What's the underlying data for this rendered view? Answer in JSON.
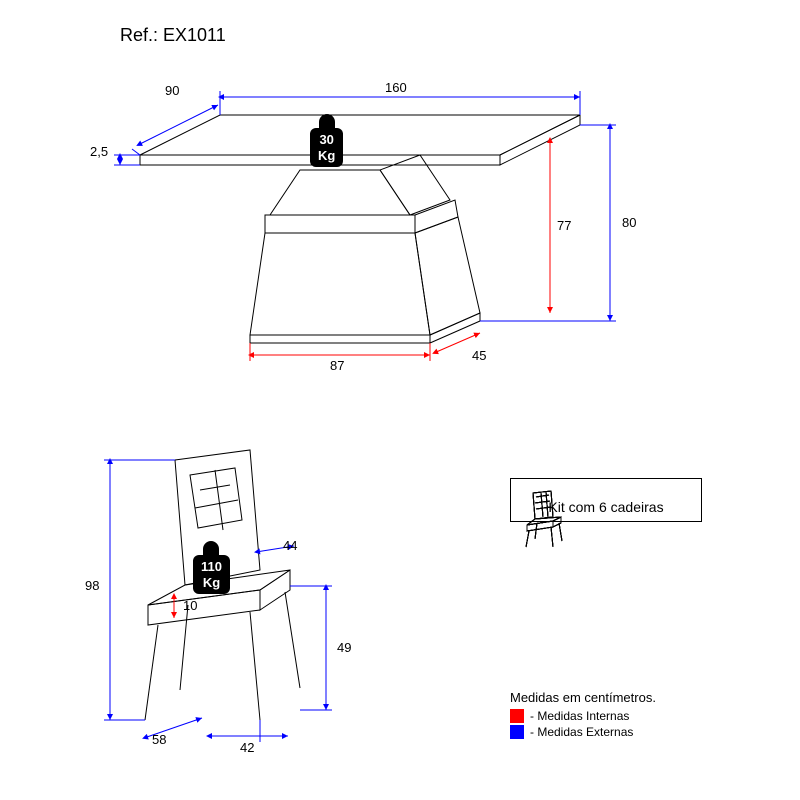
{
  "ref": "Ref.: EX1011",
  "colors": {
    "external": "#0000ff",
    "internal": "#ff0000",
    "stroke": "#000000",
    "bg": "#ffffff"
  },
  "table": {
    "weight_value": "30",
    "weight_unit": "Kg",
    "dims": {
      "depth": "90",
      "width": "160",
      "thickness": "2,5",
      "height": "80",
      "inner_height": "77",
      "base_w": "87",
      "base_d": "45"
    }
  },
  "chair": {
    "weight_value": "110",
    "weight_unit": "Kg",
    "dims": {
      "height": "98",
      "seat_depth": "58",
      "seat_width": "42",
      "back_width": "44",
      "cushion": "10",
      "seat_height": "49"
    }
  },
  "kit": {
    "caption": "Kit com 6 cadeiras",
    "count": 6
  },
  "legend": {
    "title": "Medidas em centímetros.",
    "internal": "- Medidas Internas",
    "external": "- Medidas Externas"
  }
}
